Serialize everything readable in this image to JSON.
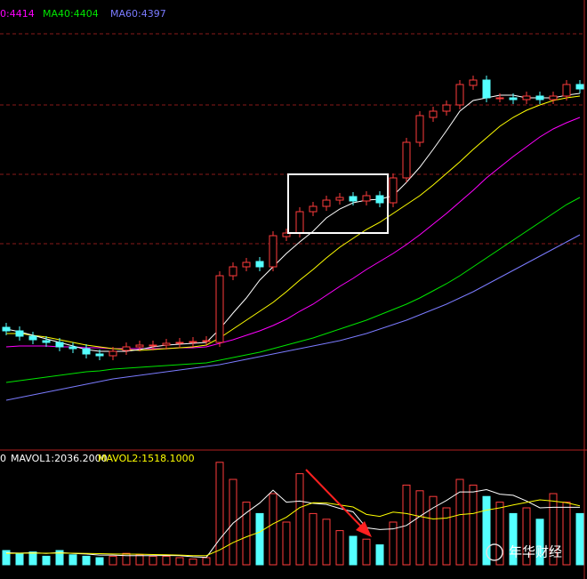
{
  "chart_data": [
    {
      "type": "candlestick",
      "up_color": "#ff3c3c",
      "down_color": "#54ffff",
      "ylim": [
        3895,
        4400
      ],
      "open": [
        4032,
        4028,
        4022,
        4017,
        4015,
        4010,
        4008,
        4002,
        4000,
        4006,
        4010,
        4011,
        4012,
        4014,
        4015,
        4016,
        4015,
        4090,
        4100,
        4106,
        4100,
        4134,
        4138,
        4162,
        4168,
        4175,
        4179,
        4174,
        4180,
        4172,
        4200,
        4240,
        4268,
        4275,
        4282,
        4304,
        4310,
        4290,
        4290,
        4288,
        4292,
        4288,
        4292,
        4305
      ],
      "high": [
        4037,
        4033,
        4027,
        4022,
        4020,
        4015,
        4013,
        4007,
        4010,
        4015,
        4017,
        4017,
        4019,
        4020,
        4021,
        4022,
        4095,
        4105,
        4110,
        4111,
        4140,
        4143,
        4167,
        4173,
        4180,
        4183,
        4184,
        4185,
        4185,
        4205,
        4245,
        4275,
        4280,
        4287,
        4310,
        4315,
        4315,
        4295,
        4295,
        4297,
        4297,
        4297,
        4310,
        4310
      ],
      "low": [
        4023,
        4017,
        4013,
        4010,
        4005,
        4003,
        3997,
        3995,
        3995,
        4001,
        4005,
        4006,
        4007,
        4009,
        4010,
        4011,
        4010,
        4085,
        4095,
        4095,
        4095,
        4129,
        4133,
        4157,
        4163,
        4170,
        4169,
        4169,
        4167,
        4167,
        4195,
        4235,
        4263,
        4270,
        4277,
        4299,
        4285,
        4285,
        4283,
        4283,
        4283,
        4283,
        4287,
        4295
      ],
      "close": [
        4028,
        4022,
        4018,
        4015,
        4010,
        4008,
        4002,
        4000,
        4005,
        4010,
        4012,
        4012,
        4014,
        4015,
        4016,
        4017,
        4090,
        4100,
        4105,
        4100,
        4135,
        4138,
        4162,
        4168,
        4175,
        4178,
        4174,
        4180,
        4172,
        4200,
        4240,
        4270,
        4275,
        4282,
        4305,
        4310,
        4290,
        4290,
        4288,
        4292,
        4288,
        4292,
        4305,
        4300
      ],
      "series": [
        {
          "color": "#ffffff",
          "values": [
            4030,
            4027,
            4023,
            4019,
            4015,
            4011,
            4007,
            4005,
            4005,
            4005,
            4007,
            4010,
            4012,
            4013,
            4014,
            4015,
            4030,
            4048,
            4065,
            4085,
            4100,
            4115,
            4128,
            4140,
            4155,
            4165,
            4172,
            4175,
            4176,
            4180,
            4195,
            4212,
            4232,
            4253,
            4275,
            4287,
            4290,
            4293,
            4293,
            4290,
            4290,
            4290,
            4293,
            4295
          ]
        },
        {
          "color": "#ffff00",
          "values": [
            4025,
            4025,
            4023,
            4021,
            4018,
            4015,
            4012,
            4010,
            4008,
            4007,
            4006,
            4007,
            4008,
            4009,
            4010,
            4012,
            4020,
            4030,
            4040,
            4050,
            4060,
            4072,
            4085,
            4097,
            4110,
            4122,
            4132,
            4142,
            4150,
            4160,
            4170,
            4180,
            4192,
            4205,
            4218,
            4232,
            4245,
            4258,
            4268,
            4276,
            4282,
            4287,
            4290,
            4292
          ]
        },
        {
          "name": "0:4414",
          "color": "#ff00ff",
          "values": [
            4010,
            4011,
            4011,
            4011,
            4010,
            4010,
            4009,
            4009,
            4008,
            4008,
            4008,
            4008,
            4008,
            4009,
            4009,
            4010,
            4014,
            4018,
            4023,
            4028,
            4034,
            4041,
            4050,
            4058,
            4068,
            4078,
            4087,
            4097,
            4106,
            4115,
            4125,
            4136,
            4148,
            4160,
            4173,
            4186,
            4200,
            4212,
            4224,
            4235,
            4246,
            4255,
            4262,
            4268
          ]
        },
        {
          "name": "MA40:4404",
          "color": "#00e600",
          "values": [
            3970,
            3972,
            3974,
            3976,
            3978,
            3980,
            3982,
            3983,
            3985,
            3986,
            3987,
            3988,
            3989,
            3990,
            3991,
            3992,
            3995,
            3998,
            4001,
            4004,
            4008,
            4012,
            4016,
            4020,
            4025,
            4030,
            4035,
            4040,
            4046,
            4052,
            4058,
            4065,
            4073,
            4081,
            4090,
            4100,
            4110,
            4120,
            4130,
            4140,
            4150,
            4160,
            4170,
            4178
          ]
        },
        {
          "name": "MA60:4397",
          "color": "#7b7bff",
          "values": [
            3950,
            3953,
            3956,
            3959,
            3962,
            3965,
            3968,
            3971,
            3974,
            3976,
            3978,
            3980,
            3982,
            3984,
            3986,
            3988,
            3990,
            3993,
            3996,
            3999,
            4002,
            4005,
            4008,
            4011,
            4014,
            4017,
            4021,
            4025,
            4030,
            4035,
            4040,
            4046,
            4052,
            4058,
            4065,
            4072,
            4080,
            4088,
            4096,
            4104,
            4112,
            4120,
            4128,
            4136
          ]
        }
      ]
    },
    {
      "type": "volume",
      "legend_prefix": "0",
      "ylim": [
        0,
        4000
      ],
      "watermark": "年华财经",
      "values": [
        500,
        400,
        450,
        300,
        500,
        350,
        300,
        250,
        300,
        400,
        350,
        300,
        300,
        250,
        200,
        250,
        3600,
        3000,
        2200,
        1800,
        2500,
        1500,
        3200,
        1800,
        1600,
        1200,
        1000,
        900,
        700,
        1500,
        2800,
        2600,
        2400,
        2000,
        3000,
        2800,
        2400,
        2200,
        1800,
        2000,
        1600,
        2500,
        2200,
        1800
      ],
      "series": [
        {
          "name": "MAVOL1:2036.2000",
          "color": "#ffffff",
          "values": [
            420,
            410,
            420,
            400,
            430,
            400,
            380,
            340,
            340,
            320,
            320,
            320,
            330,
            320,
            280,
            260,
            900,
            1460,
            1830,
            2170,
            2620,
            2200,
            2240,
            2160,
            2120,
            1980,
            1860,
            1300,
            1240,
            1260,
            1380,
            1700,
            2000,
            2260,
            2560,
            2560,
            2640,
            2480,
            2440,
            2240,
            2000,
            2020,
            2020,
            2020
          ]
        },
        {
          "name": "MAVOL2:1518.1000",
          "color": "#ffff00",
          "values": [
            400,
            405,
            410,
            405,
            410,
            405,
            400,
            390,
            380,
            375,
            370,
            360,
            350,
            340,
            320,
            320,
            520,
            780,
            980,
            1150,
            1440,
            1670,
            2010,
            2180,
            2170,
            2100,
            2030,
            1770,
            1700,
            1850,
            1800,
            1700,
            1610,
            1640,
            1760,
            1800,
            1920,
            2000,
            2100,
            2190,
            2280,
            2240,
            2180,
            2070
          ]
        }
      ]
    }
  ]
}
